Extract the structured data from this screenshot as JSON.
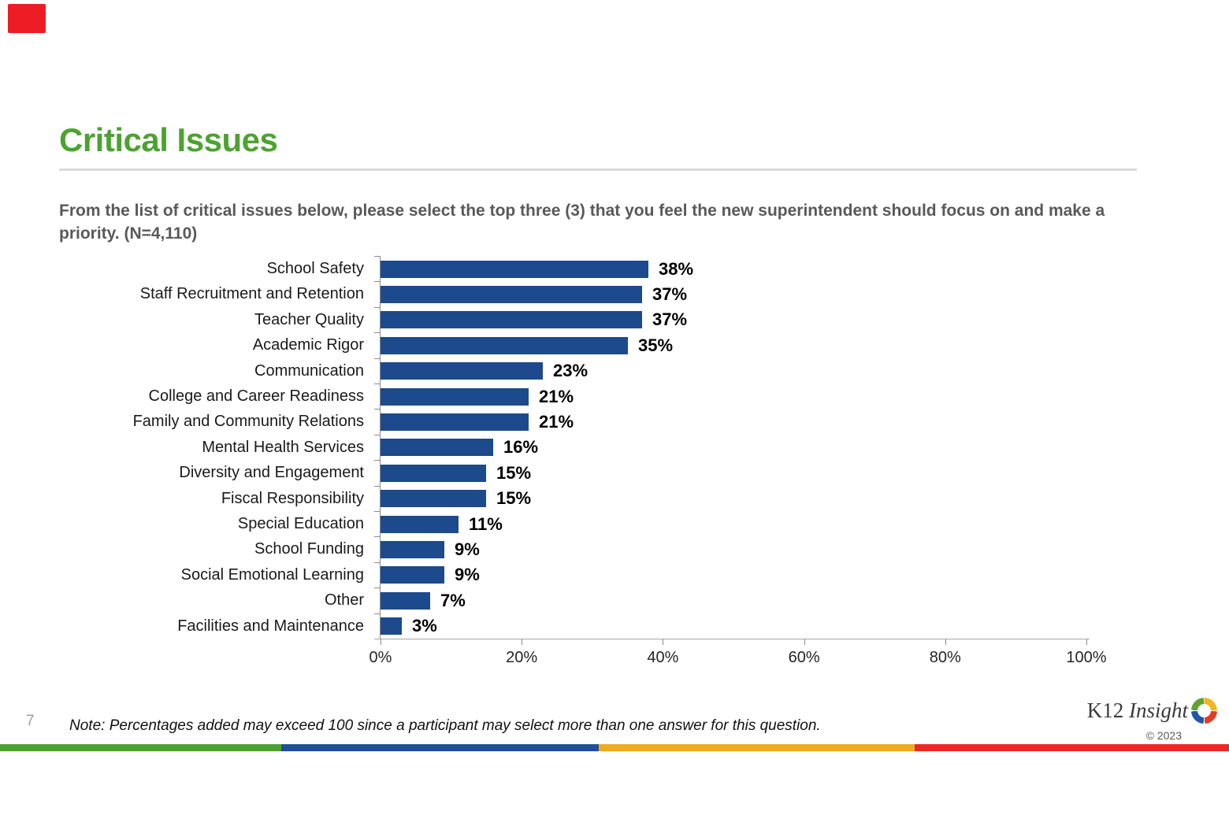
{
  "slide": {
    "title": "Critical Issues",
    "subtitle": [
      "From the list of critical issues below, please select the top three (3) that you feel the new superintendent should focus on and make a",
      "priority. (N=4,110)"
    ],
    "note": "Note: Percentages added may exceed 100 since a participant may select more than one answer for this question.",
    "page_number": "7"
  },
  "chart_data": {
    "type": "bar",
    "orientation": "horizontal",
    "title": "Critical Issues",
    "xlabel": "",
    "ylabel": "",
    "xlim": [
      0,
      100
    ],
    "grid": "off",
    "legend": "none",
    "bar_color": "#1c4a8c",
    "categories": [
      "School Safety",
      "Staff Recruitment and Retention",
      "Teacher Quality",
      "Academic Rigor",
      "Communication",
      "College and Career Readiness",
      "Family and Community Relations",
      "Mental Health Services",
      "Diversity and Engagement",
      "Fiscal Responsibility",
      "Special Education",
      "School Funding",
      "Social Emotional Learning",
      "Other",
      "Facilities and Maintenance"
    ],
    "values": [
      38,
      37,
      37,
      35,
      23,
      21,
      21,
      16,
      15,
      15,
      11,
      9,
      9,
      7,
      3
    ],
    "value_labels": [
      "38%",
      "37%",
      "37%",
      "35%",
      "23%",
      "21%",
      "21%",
      "16%",
      "15%",
      "15%",
      "11%",
      "9%",
      "9%",
      "7%",
      "3%"
    ],
    "x_tick_labels": [
      "0%",
      "20%",
      "40%",
      "60%",
      "80%",
      "100%"
    ]
  },
  "logo": {
    "brand_part1": "K12 ",
    "brand_part2": "Insight",
    "copyright": "© 2023",
    "icon": "ring-quadrant-icon",
    "icon_colors": [
      "#61a233",
      "#f0b723",
      "#e23c25",
      "#2257a5"
    ]
  },
  "decor": {
    "corner_marker_color": "#ee1c25",
    "title_color": "#4CA330",
    "stripe_colors": [
      "#4CA330",
      "#1f4e9b",
      "#f0ac1e",
      "#ee2724"
    ]
  }
}
